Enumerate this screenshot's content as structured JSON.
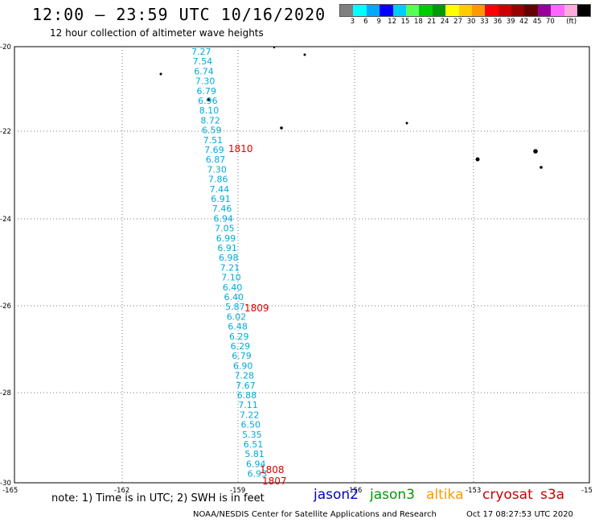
{
  "title": "12:00 — 23:59 UTC 10/16/2020",
  "subtitle": "12 hour collection of altimeter wave heights",
  "legend": {
    "colors": [
      "#808080",
      "#00ffff",
      "#00aaff",
      "#0000ff",
      "#00ccff",
      "#55ff55",
      "#00cc00",
      "#009900",
      "#ffff00",
      "#ffcc00",
      "#ff9900",
      "#ff0000",
      "#cc0000",
      "#990000",
      "#660000",
      "#990099",
      "#ff66ff",
      "#ffaadd",
      "#000000"
    ],
    "labels": [
      "3",
      "6",
      "9",
      "12",
      "15",
      "18",
      "21",
      "24",
      "27",
      "30",
      "33",
      "36",
      "39",
      "42",
      "45",
      "70",
      "(ft)"
    ]
  },
  "map": {
    "lon_ticks": [
      "-165",
      "-162",
      "-159",
      "-156",
      "-153",
      "-15"
    ],
    "lat_ticks": [
      "-20",
      "-22",
      "-24",
      "-26",
      "-28",
      "-30"
    ],
    "swh_color": "#00aadd",
    "time_color": "#dd0000",
    "swh_values": [
      "7.27",
      "7.54",
      "6.74",
      "7.30",
      "6.79",
      "6.96",
      "8.10",
      "8.72",
      "6.59",
      "7.51",
      "7.69",
      "6.87",
      "7.30",
      "7.86",
      "7.44",
      "6.91",
      "7.46",
      "6.94",
      "7.05",
      "6.99",
      "6.91",
      "6.98",
      "7.21",
      "7.10",
      "6.40",
      "6.40",
      "5.87",
      "6.02",
      "6.48",
      "6.29",
      "6.29",
      "6.79",
      "6.90",
      "7.28",
      "7.67",
      "6.88",
      "7.11",
      "7.22",
      "6.50",
      "5.35",
      "6.51",
      "5.81",
      "6.94",
      "6.93"
    ],
    "time_labels": [
      "1810",
      "1809",
      "1808",
      "1807"
    ]
  },
  "note": "note: 1) Time is in UTC; 2) SWH is in feet",
  "satellites": {
    "jason2": "jason2",
    "jason3": "jason3",
    "altika": "altika",
    "cryosat": "cryosat",
    "s3a": "s3a"
  },
  "sat_colors": {
    "jason2": "#0000cc",
    "jason3": "#009900",
    "altika": "#ff9900",
    "cryosat": "#cc0000",
    "s3a": "#cc0000"
  },
  "footer": "NOAA/NESDIS Center for Satellite Applications and Research",
  "generated": "Oct 17 08:27:53 UTC 2020"
}
